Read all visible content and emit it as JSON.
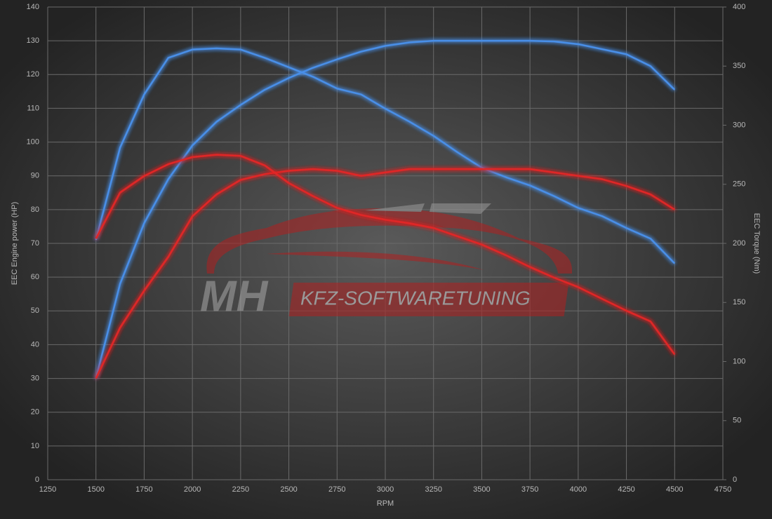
{
  "chart_data": {
    "type": "line",
    "xlabel": "RPM",
    "ylabel": "EEC Engine power (HP)",
    "y2label": "EEC Torque (Nm)",
    "watermark": [
      "MH",
      "KFZ-SOFTWARETUNING"
    ],
    "x": [
      1500,
      1625,
      1750,
      1875,
      2000,
      2125,
      2250,
      2375,
      2500,
      2625,
      2750,
      2875,
      3000,
      3125,
      3250,
      3375,
      3500,
      3625,
      3750,
      3875,
      4000,
      4125,
      4250,
      4375,
      4500
    ],
    "series": [
      {
        "color": "#4a8fe8",
        "values": [
          30,
          58,
          76,
          89,
          99,
          106,
          111,
          115.5,
          119,
          122,
          124.5,
          126.8,
          128.5,
          129.5,
          130,
          130,
          130,
          130,
          130,
          129.8,
          129,
          127.5,
          126,
          122.5,
          115.5
        ]
      },
      {
        "color": "#4a8fe8",
        "axis": "y2",
        "values": [
          203,
          281,
          326,
          357,
          364,
          365,
          364,
          357,
          349,
          341,
          331,
          326,
          314,
          303,
          291,
          277,
          264,
          256,
          249,
          240,
          230,
          223,
          213,
          204,
          183
        ]
      },
      {
        "color": "#e02828",
        "values": [
          30,
          45,
          56,
          66,
          78,
          84.5,
          88.8,
          90.5,
          91.5,
          92,
          91.5,
          90,
          91,
          92,
          92,
          92,
          92,
          92,
          92,
          91,
          90,
          89,
          87,
          84.5,
          80
        ]
      },
      {
        "color": "#e02828",
        "axis": "y2",
        "values": [
          204,
          243,
          257,
          267,
          273,
          275,
          274,
          266,
          251,
          240,
          230,
          224,
          220,
          217,
          213,
          206,
          199,
          190,
          180,
          171,
          163,
          153,
          143,
          134,
          106
        ]
      }
    ],
    "xlim": [
      1250,
      4750
    ],
    "xticks": [
      1250,
      1500,
      1750,
      2000,
      2250,
      2500,
      2750,
      3000,
      3250,
      3500,
      3750,
      4000,
      4250,
      4500,
      4750
    ],
    "ylim": [
      0,
      140
    ],
    "yticks": [
      0,
      10,
      20,
      30,
      40,
      50,
      60,
      70,
      80,
      90,
      100,
      110,
      120,
      130,
      140
    ],
    "y2lim": [
      0,
      400
    ],
    "y2ticks": [
      0,
      50,
      100,
      150,
      200,
      250,
      300,
      350,
      400
    ],
    "grid": true
  }
}
